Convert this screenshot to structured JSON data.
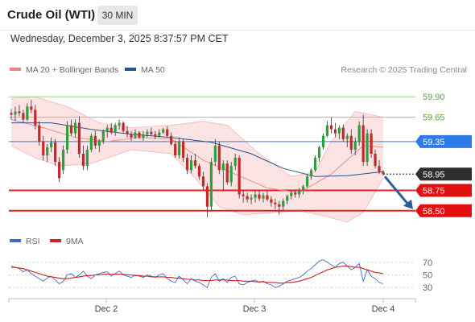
{
  "header": {
    "title": "Crude Oil (WTI)",
    "timeframe": "30 MIN",
    "datetime": "Wednesday, December 3, 2025 8:37:57 PM CET"
  },
  "chart_data": [
    {
      "type": "candlestick",
      "title": "Crude Oil (WTI)",
      "legend": [
        {
          "name": "MA 20 + Bollinger Bands",
          "color": "#f08080"
        },
        {
          "name": "MA 50",
          "color": "#27548a"
        }
      ],
      "credit": "Research © 2025 Trading Central",
      "x_tick_labels": [
        "Dec 2",
        "Dec 3",
        "Dec 4"
      ],
      "ylim": [
        58.3,
        60.1
      ],
      "levels": [
        {
          "value": 59.9,
          "label": "59.90",
          "style": "green-line"
        },
        {
          "value": 59.65,
          "label": "59.65",
          "style": "green-line"
        },
        {
          "value": 59.35,
          "label": "59.35",
          "style": "blue-tag"
        },
        {
          "value": 58.95,
          "label": "58.95",
          "style": "current-price"
        },
        {
          "value": 58.75,
          "label": "58.75",
          "style": "red-tag"
        },
        {
          "value": 58.5,
          "label": "58.50",
          "style": "red-tag"
        }
      ],
      "forecast_arrow": {
        "from": 58.95,
        "to": 58.5,
        "color": "#2b5d9b"
      },
      "candles": [
        [
          59.7,
          59.75,
          59.62,
          59.68
        ],
        [
          59.68,
          59.78,
          59.6,
          59.72
        ],
        [
          59.72,
          59.8,
          59.66,
          59.7
        ],
        [
          59.7,
          59.74,
          59.58,
          59.62
        ],
        [
          59.62,
          59.82,
          59.6,
          59.78
        ],
        [
          59.78,
          59.86,
          59.7,
          59.74
        ],
        [
          59.74,
          59.8,
          59.5,
          59.55
        ],
        [
          59.55,
          59.6,
          59.3,
          59.35
        ],
        [
          59.35,
          59.42,
          59.12,
          59.18
        ],
        [
          59.18,
          59.32,
          59.1,
          59.28
        ],
        [
          59.28,
          59.4,
          59.22,
          59.34
        ],
        [
          59.34,
          59.38,
          59.05,
          59.1
        ],
        [
          59.1,
          59.16,
          58.85,
          58.9
        ],
        [
          59.0,
          59.3,
          58.95,
          59.25
        ],
        [
          59.25,
          59.6,
          59.2,
          59.55
        ],
        [
          59.55,
          59.62,
          59.42,
          59.45
        ],
        [
          59.45,
          59.62,
          59.4,
          59.58
        ],
        [
          59.58,
          59.66,
          59.15,
          59.2
        ],
        [
          59.2,
          59.3,
          59.0,
          59.05
        ],
        [
          59.05,
          59.3,
          59.0,
          59.25
        ],
        [
          59.25,
          59.45,
          59.22,
          59.42
        ],
        [
          59.42,
          59.48,
          59.26,
          59.3
        ],
        [
          59.3,
          59.38,
          59.22,
          59.36
        ],
        [
          59.36,
          59.5,
          59.32,
          59.48
        ],
        [
          59.48,
          59.55,
          59.4,
          59.52
        ],
        [
          59.52,
          59.58,
          59.44,
          59.46
        ],
        [
          59.46,
          59.58,
          59.42,
          59.55
        ],
        [
          59.55,
          59.62,
          59.5,
          59.58
        ],
        [
          59.58,
          59.6,
          59.45,
          59.48
        ],
        [
          59.48,
          59.54,
          59.4,
          59.44
        ],
        [
          59.44,
          59.48,
          59.36,
          59.4
        ],
        [
          59.4,
          59.5,
          59.38,
          59.46
        ],
        [
          59.46,
          59.48,
          59.38,
          59.4
        ],
        [
          59.4,
          59.48,
          59.36,
          59.44
        ],
        [
          59.44,
          59.5,
          59.4,
          59.47
        ],
        [
          59.47,
          59.52,
          59.42,
          59.44
        ],
        [
          59.44,
          59.48,
          59.38,
          59.42
        ],
        [
          59.42,
          59.5,
          59.4,
          59.46
        ],
        [
          59.46,
          59.52,
          59.44,
          59.5
        ],
        [
          59.5,
          59.54,
          59.4,
          59.42
        ],
        [
          59.42,
          59.46,
          59.3,
          59.32
        ],
        [
          59.32,
          59.36,
          59.15,
          59.18
        ],
        [
          59.18,
          59.4,
          59.14,
          59.35
        ],
        [
          59.35,
          59.38,
          59.1,
          59.15
        ],
        [
          59.15,
          59.2,
          58.95,
          59.0
        ],
        [
          59.0,
          59.18,
          58.96,
          59.12
        ],
        [
          59.12,
          59.2,
          59.02,
          59.05
        ],
        [
          59.05,
          59.08,
          58.88,
          58.92
        ],
        [
          58.92,
          58.98,
          58.76,
          58.8
        ],
        [
          58.8,
          58.84,
          58.42,
          58.55
        ],
        [
          58.55,
          59.15,
          58.5,
          59.1
        ],
        [
          59.1,
          59.38,
          59.05,
          59.3
        ],
        [
          59.3,
          59.35,
          58.95,
          59.0
        ],
        [
          59.0,
          59.12,
          58.75,
          59.08
        ],
        [
          59.08,
          59.12,
          58.82,
          58.85
        ],
        [
          58.85,
          59.1,
          58.8,
          59.05
        ],
        [
          59.05,
          59.2,
          59.0,
          59.15
        ],
        [
          59.15,
          59.18,
          58.65,
          58.7
        ],
        [
          58.7,
          58.75,
          58.6,
          58.68
        ],
        [
          58.68,
          58.72,
          58.6,
          58.64
        ],
        [
          58.64,
          58.7,
          58.58,
          58.66
        ],
        [
          58.66,
          58.74,
          58.6,
          58.7
        ],
        [
          58.7,
          58.75,
          58.62,
          58.65
        ],
        [
          58.65,
          58.72,
          58.6,
          58.69
        ],
        [
          58.69,
          58.74,
          58.62,
          58.64
        ],
        [
          58.64,
          58.68,
          58.55,
          58.6
        ],
        [
          58.6,
          58.65,
          58.52,
          58.58
        ],
        [
          58.58,
          58.62,
          58.45,
          58.55
        ],
        [
          58.55,
          58.65,
          58.5,
          58.62
        ],
        [
          58.62,
          58.7,
          58.58,
          58.68
        ],
        [
          58.68,
          58.74,
          58.64,
          58.72
        ],
        [
          58.72,
          58.76,
          58.66,
          58.7
        ],
        [
          58.7,
          58.78,
          58.66,
          58.75
        ],
        [
          58.75,
          58.82,
          58.7,
          58.8
        ],
        [
          58.8,
          58.95,
          58.78,
          58.92
        ],
        [
          58.92,
          59.02,
          58.88,
          59.0
        ],
        [
          59.0,
          59.18,
          58.98,
          59.15
        ],
        [
          59.15,
          59.3,
          59.1,
          59.28
        ],
        [
          59.28,
          59.45,
          59.25,
          59.42
        ],
        [
          59.42,
          59.6,
          59.4,
          59.55
        ],
        [
          59.55,
          59.65,
          59.45,
          59.5
        ],
        [
          59.5,
          59.58,
          59.4,
          59.45
        ],
        [
          59.45,
          59.55,
          59.38,
          59.52
        ],
        [
          59.52,
          59.56,
          59.35,
          59.38
        ],
        [
          59.38,
          59.45,
          59.28,
          59.42
        ],
        [
          59.42,
          59.5,
          59.2,
          59.25
        ],
        [
          59.25,
          59.4,
          59.18,
          59.35
        ],
        [
          59.35,
          59.6,
          59.3,
          59.55
        ],
        [
          59.55,
          59.68,
          59.05,
          59.1
        ],
        [
          59.1,
          59.5,
          59.05,
          59.45
        ],
        [
          59.45,
          59.5,
          59.15,
          59.2
        ],
        [
          59.2,
          59.25,
          59.02,
          59.05
        ],
        [
          59.05,
          59.12,
          58.95,
          58.98
        ],
        [
          58.98,
          59.0,
          58.93,
          58.95
        ]
      ],
      "ma20": [
        [
          0,
          59.62
        ],
        [
          8,
          59.52
        ],
        [
          16,
          59.4
        ],
        [
          24,
          59.35
        ],
        [
          32,
          59.4
        ],
        [
          40,
          59.38
        ],
        [
          48,
          59.12
        ],
        [
          56,
          58.95
        ],
        [
          64,
          58.78
        ],
        [
          72,
          58.72
        ],
        [
          80,
          58.95
        ],
        [
          88,
          59.3
        ],
        [
          93,
          59.28
        ]
      ],
      "ma50": [
        [
          0,
          59.58
        ],
        [
          10,
          59.58
        ],
        [
          20,
          59.5
        ],
        [
          30,
          59.44
        ],
        [
          40,
          59.4
        ],
        [
          50,
          59.34
        ],
        [
          60,
          59.2
        ],
        [
          68,
          59.02
        ],
        [
          76,
          58.92
        ],
        [
          84,
          58.93
        ],
        [
          93,
          58.98
        ]
      ],
      "bollinger_upper": [
        [
          0,
          59.88
        ],
        [
          6,
          59.9
        ],
        [
          14,
          59.78
        ],
        [
          22,
          59.58
        ],
        [
          30,
          59.52
        ],
        [
          40,
          59.55
        ],
        [
          48,
          59.6
        ],
        [
          54,
          59.55
        ],
        [
          62,
          59.2
        ],
        [
          70,
          58.92
        ],
        [
          76,
          58.98
        ],
        [
          80,
          59.35
        ],
        [
          86,
          59.72
        ],
        [
          93,
          59.65
        ]
      ],
      "bollinger_lower": [
        [
          0,
          59.3
        ],
        [
          6,
          59.15
        ],
        [
          12,
          59.05
        ],
        [
          20,
          59.08
        ],
        [
          30,
          59.25
        ],
        [
          40,
          59.2
        ],
        [
          46,
          58.9
        ],
        [
          52,
          58.55
        ],
        [
          58,
          58.45
        ],
        [
          66,
          58.48
        ],
        [
          72,
          58.5
        ],
        [
          78,
          58.44
        ],
        [
          84,
          58.36
        ],
        [
          88,
          58.48
        ],
        [
          93,
          58.9
        ]
      ]
    },
    {
      "type": "line",
      "legend": [
        {
          "name": "RSI",
          "color": "#4169c9"
        },
        {
          "name": "9MA",
          "color": "#d32020"
        }
      ],
      "y_tick_labels": [
        "70",
        "50",
        "30"
      ],
      "ylim": [
        20,
        80
      ],
      "series": [
        {
          "name": "RSI",
          "color": "#4169c9",
          "values": [
            64,
            62,
            60,
            55,
            58,
            52,
            48,
            44,
            40,
            45,
            48,
            42,
            36,
            40,
            50,
            52,
            46,
            50,
            56,
            48,
            44,
            50,
            52,
            54,
            55,
            48,
            52,
            56,
            50,
            48,
            46,
            50,
            48,
            46,
            50,
            48,
            46,
            50,
            52,
            44,
            40,
            38,
            48,
            42,
            36,
            44,
            40,
            38,
            34,
            30,
            46,
            52,
            40,
            44,
            38,
            46,
            48,
            36,
            34,
            38,
            40,
            42,
            38,
            40,
            36,
            34,
            30,
            32,
            36,
            40,
            42,
            44,
            46,
            50,
            56,
            60,
            66,
            72,
            74,
            70,
            66,
            62,
            68,
            70,
            64,
            58,
            62,
            68,
            40,
            58,
            48,
            44,
            38,
            36
          ]
        },
        {
          "name": "9MA",
          "color": "#d32020",
          "values": [
            62,
            62,
            61,
            60,
            58,
            56,
            54,
            52,
            50,
            48,
            47,
            46,
            45,
            44,
            44,
            45,
            46,
            47,
            48,
            49,
            49,
            50,
            50,
            51,
            51,
            51,
            51,
            51,
            51,
            50,
            50,
            49,
            49,
            48,
            48,
            47,
            47,
            47,
            47,
            46,
            46,
            45,
            45,
            44,
            43,
            43,
            42,
            42,
            41,
            41,
            41,
            42,
            42,
            42,
            42,
            41,
            41,
            41,
            40,
            40,
            40,
            39,
            39,
            39,
            38,
            38,
            38,
            37,
            37,
            38,
            38,
            39,
            40,
            42,
            44,
            46,
            49,
            52,
            55,
            58,
            60,
            62,
            63,
            64,
            64,
            63,
            62,
            62,
            60,
            58,
            56,
            54,
            53,
            52
          ]
        }
      ]
    }
  ]
}
